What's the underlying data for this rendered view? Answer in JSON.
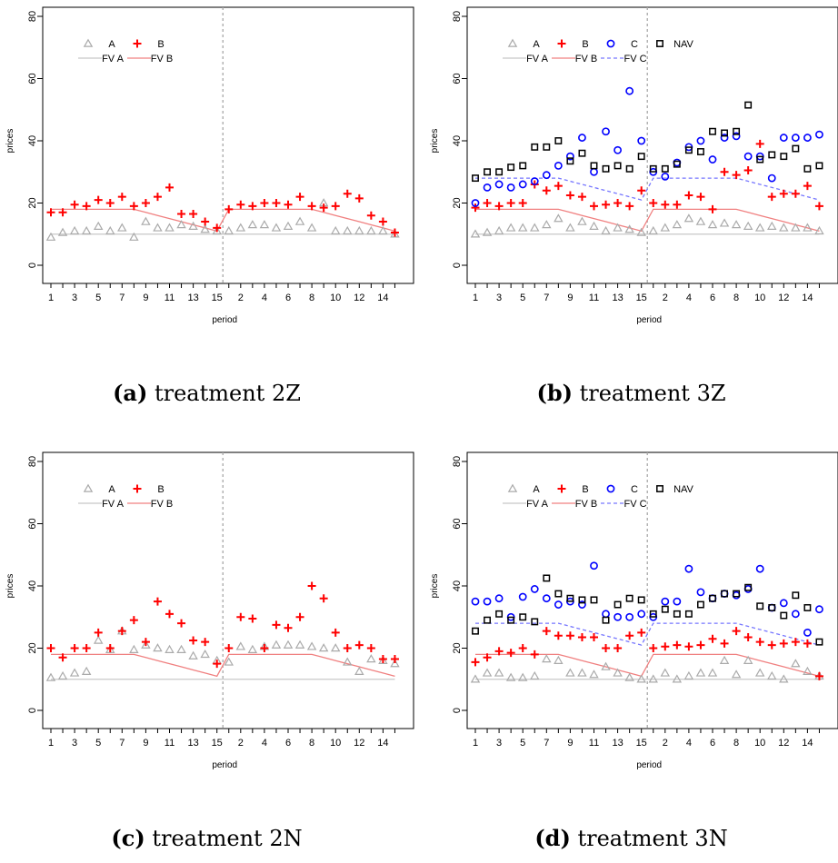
{
  "figure": {
    "captions": [
      {
        "label": "(a)",
        "text": "treatment 2Z"
      },
      {
        "label": "(b)",
        "text": "treatment 3Z"
      },
      {
        "label": "(c)",
        "text": "treatment 2N"
      },
      {
        "label": "(d)",
        "text": "treatment 3N"
      }
    ]
  },
  "chart_data": [
    {
      "type": "scatter",
      "xlabel": "period",
      "ylabel": "prices",
      "ylim": [
        0,
        80
      ],
      "yticks": [
        0,
        20,
        40,
        60,
        80
      ],
      "x_tick_labels": [
        "1",
        "3",
        "5",
        "7",
        "9",
        "11",
        "13",
        "15",
        "2",
        "4",
        "6",
        "8",
        "10",
        "12",
        "14"
      ],
      "session_divider": 15.5,
      "grid": false,
      "legend": {
        "position": "top-left",
        "entries": [
          "A",
          "B",
          "FV A",
          "FV B"
        ]
      },
      "colors": {
        "A": "#aaaaaa",
        "B": "#ff0000"
      },
      "series": [
        {
          "name": "A",
          "marker": "triangle",
          "color": "#aaaaaa",
          "values": [
            9,
            10.5,
            11,
            11,
            12.5,
            11,
            12,
            9,
            14,
            12,
            12,
            13,
            12.5,
            11.5,
            11,
            11,
            12,
            13,
            13,
            12,
            12.5,
            14,
            12,
            20,
            11,
            11,
            11,
            11,
            11,
            10
          ]
        },
        {
          "name": "B",
          "marker": "plus",
          "color": "#ff0000",
          "values": [
            17,
            17,
            19.5,
            19,
            21,
            20,
            22,
            19,
            20,
            22,
            25,
            16.5,
            16.5,
            14,
            12,
            18,
            19.5,
            19,
            20,
            20,
            19.5,
            22,
            19,
            18.5,
            19,
            23,
            21.5,
            16,
            14,
            10.5
          ]
        },
        {
          "name": "FV A",
          "line": "solid",
          "color": "#c8c8c8",
          "values": [
            10,
            10,
            10,
            10,
            10,
            10,
            10,
            10,
            10,
            10,
            10,
            10,
            10,
            10,
            10,
            10,
            10,
            10,
            10,
            10,
            10,
            10,
            10,
            10,
            10,
            10,
            10,
            10,
            10,
            10
          ]
        },
        {
          "name": "FV B",
          "line": "solid",
          "color": "#f08080",
          "values": [
            18,
            18,
            18,
            18,
            18,
            18,
            18,
            18,
            17,
            16,
            15,
            14,
            13,
            12,
            11,
            18,
            18,
            18,
            18,
            18,
            18,
            18,
            18,
            17,
            16,
            15,
            14,
            13,
            12,
            11
          ]
        }
      ]
    },
    {
      "type": "scatter",
      "xlabel": "period",
      "ylabel": "prices",
      "ylim": [
        0,
        80
      ],
      "yticks": [
        0,
        20,
        40,
        60,
        80
      ],
      "x_tick_labels": [
        "1",
        "3",
        "5",
        "7",
        "9",
        "11",
        "13",
        "15",
        "2",
        "4",
        "6",
        "8",
        "10",
        "12",
        "14"
      ],
      "session_divider": 15.5,
      "grid": false,
      "legend": {
        "position": "top-left",
        "entries": [
          "A",
          "B",
          "C",
          "NAV",
          "FV A",
          "FV B",
          "FV C"
        ]
      },
      "colors": {
        "A": "#aaaaaa",
        "B": "#ff0000",
        "C": "#0000ff",
        "NAV": "#000000"
      },
      "series": [
        {
          "name": "A",
          "marker": "triangle",
          "color": "#aaaaaa",
          "values": [
            10,
            10.5,
            11,
            12,
            12,
            12,
            13,
            15,
            12,
            14,
            12.5,
            11,
            12,
            11.5,
            10.5,
            11,
            12,
            13,
            15,
            14,
            13,
            13.5,
            13,
            12.5,
            12,
            12.5,
            12,
            12,
            12,
            11
          ]
        },
        {
          "name": "B",
          "marker": "plus",
          "color": "#ff0000",
          "values": [
            18.5,
            20,
            19,
            20,
            20,
            26,
            24,
            25.5,
            22.5,
            22,
            19,
            19.5,
            20,
            19,
            24,
            20,
            19.5,
            19.5,
            22.5,
            22,
            18,
            30,
            29,
            30.5,
            39,
            22,
            23,
            23,
            25.5,
            19
          ]
        },
        {
          "name": "C",
          "marker": "circle",
          "color": "#0000ff",
          "values": [
            20,
            25,
            26,
            25,
            26,
            27,
            29,
            32,
            35,
            41,
            30,
            43,
            37,
            56,
            40,
            30,
            28.5,
            33,
            38,
            40,
            34,
            41,
            41.5,
            35,
            35,
            28,
            41,
            41,
            41,
            42
          ]
        },
        {
          "name": "NAV",
          "marker": "square",
          "color": "#000000",
          "values": [
            28,
            30,
            30,
            31.5,
            32,
            38,
            38,
            40,
            33.5,
            36,
            32,
            31,
            32,
            31,
            35,
            31,
            31,
            32.5,
            37,
            36.5,
            43,
            42.5,
            43,
            51.5,
            34,
            35.5,
            35,
            37.5,
            31,
            32
          ]
        },
        {
          "name": "FV A",
          "line": "solid",
          "color": "#c8c8c8",
          "values": [
            10,
            10,
            10,
            10,
            10,
            10,
            10,
            10,
            10,
            10,
            10,
            10,
            10,
            10,
            10,
            10,
            10,
            10,
            10,
            10,
            10,
            10,
            10,
            10,
            10,
            10,
            10,
            10,
            10,
            10
          ]
        },
        {
          "name": "FV B",
          "line": "solid",
          "color": "#f08080",
          "values": [
            18,
            18,
            18,
            18,
            18,
            18,
            18,
            18,
            17,
            16,
            15,
            14,
            13,
            12,
            11,
            18,
            18,
            18,
            18,
            18,
            18,
            18,
            18,
            17,
            16,
            15,
            14,
            13,
            12,
            11
          ]
        },
        {
          "name": "FV C",
          "line": "dashed",
          "color": "#7777ff",
          "values": [
            28,
            28,
            28,
            28,
            28,
            28,
            28,
            28,
            27,
            26,
            25,
            24,
            23,
            22,
            21,
            28,
            28,
            28,
            28,
            28,
            28,
            28,
            28,
            27,
            26,
            25,
            24,
            23,
            22,
            21
          ]
        }
      ]
    },
    {
      "type": "scatter",
      "xlabel": "period",
      "ylabel": "prices",
      "ylim": [
        0,
        80
      ],
      "yticks": [
        0,
        20,
        40,
        60,
        80
      ],
      "x_tick_labels": [
        "1",
        "3",
        "5",
        "7",
        "9",
        "11",
        "13",
        "15",
        "2",
        "4",
        "6",
        "8",
        "10",
        "12",
        "14"
      ],
      "session_divider": 15.5,
      "grid": false,
      "legend": {
        "position": "top-left",
        "entries": [
          "A",
          "B",
          "FV A",
          "FV B"
        ]
      },
      "colors": {
        "A": "#aaaaaa",
        "B": "#ff0000"
      },
      "series": [
        {
          "name": "A",
          "marker": "triangle",
          "color": "#aaaaaa",
          "values": [
            10.5,
            11,
            12,
            12.5,
            22.5,
            19.5,
            25.5,
            19.5,
            21,
            20,
            19.5,
            19.5,
            17.5,
            18,
            16,
            15.5,
            20.5,
            19.5,
            20.5,
            21,
            21,
            21,
            20.5,
            20,
            20,
            15.5,
            12.5,
            16.5,
            16,
            15
          ]
        },
        {
          "name": "B",
          "marker": "plus",
          "color": "#ff0000",
          "values": [
            20,
            17,
            20,
            20,
            25,
            20,
            25.5,
            29,
            22,
            35,
            31,
            28,
            22.5,
            22,
            15,
            20,
            30,
            29.5,
            20,
            27.5,
            26.5,
            30,
            40,
            36,
            25,
            20,
            21,
            20,
            16.5,
            16.5
          ]
        },
        {
          "name": "FV A",
          "line": "solid",
          "color": "#c8c8c8",
          "values": [
            10,
            10,
            10,
            10,
            10,
            10,
            10,
            10,
            10,
            10,
            10,
            10,
            10,
            10,
            10,
            10,
            10,
            10,
            10,
            10,
            10,
            10,
            10,
            10,
            10,
            10,
            10,
            10,
            10,
            10
          ]
        },
        {
          "name": "FV B",
          "line": "solid",
          "color": "#f08080",
          "values": [
            18,
            18,
            18,
            18,
            18,
            18,
            18,
            18,
            17,
            16,
            15,
            14,
            13,
            12,
            11,
            18,
            18,
            18,
            18,
            18,
            18,
            18,
            18,
            17,
            16,
            15,
            14,
            13,
            12,
            11
          ]
        }
      ]
    },
    {
      "type": "scatter",
      "xlabel": "period",
      "ylabel": "prices",
      "ylim": [
        0,
        80
      ],
      "yticks": [
        0,
        20,
        40,
        60,
        80
      ],
      "x_tick_labels": [
        "1",
        "3",
        "5",
        "7",
        "9",
        "11",
        "13",
        "15",
        "2",
        "4",
        "6",
        "8",
        "10",
        "12",
        "14"
      ],
      "session_divider": 15.5,
      "grid": false,
      "legend": {
        "position": "top-left",
        "entries": [
          "A",
          "B",
          "C",
          "NAV",
          "FV A",
          "FV B",
          "FV C"
        ]
      },
      "colors": {
        "A": "#aaaaaa",
        "B": "#ff0000",
        "C": "#0000ff",
        "NAV": "#000000"
      },
      "series": [
        {
          "name": "A",
          "marker": "triangle",
          "color": "#aaaaaa",
          "values": [
            10,
            12,
            12,
            10.5,
            10.5,
            11,
            16.5,
            16,
            12,
            12,
            11.5,
            14,
            12,
            10.5,
            10,
            10,
            12,
            10,
            11,
            12,
            12,
            16,
            11.5,
            16,
            12,
            11,
            10,
            15,
            12.5,
            11
          ]
        },
        {
          "name": "B",
          "marker": "plus",
          "color": "#ff0000",
          "values": [
            15.5,
            17,
            19,
            18.5,
            20,
            18,
            25.5,
            24,
            24,
            23.5,
            23.5,
            20,
            20,
            24,
            25,
            20,
            20.5,
            21,
            20.5,
            21,
            23,
            21.5,
            25.5,
            23.5,
            22,
            21,
            21.5,
            22,
            21.5,
            11
          ]
        },
        {
          "name": "C",
          "marker": "circle",
          "color": "#0000ff",
          "values": [
            35,
            35,
            36,
            30,
            36.5,
            39,
            36,
            34,
            35,
            34,
            46.5,
            31,
            30,
            30,
            31,
            30,
            35,
            35,
            45.5,
            38,
            36,
            37.5,
            37,
            39,
            45.5,
            33,
            34.5,
            31,
            25,
            32.5
          ]
        },
        {
          "name": "NAV",
          "marker": "square",
          "color": "#000000",
          "values": [
            25.5,
            29,
            31,
            29,
            30,
            28.5,
            42.5,
            37.5,
            36,
            35.5,
            35.5,
            29,
            34,
            36,
            35.5,
            31,
            32.5,
            31,
            31,
            34,
            36,
            37.5,
            37.5,
            39.5,
            33.5,
            33,
            30.5,
            37,
            33,
            22
          ]
        },
        {
          "name": "FV A",
          "line": "solid",
          "color": "#c8c8c8",
          "values": [
            10,
            10,
            10,
            10,
            10,
            10,
            10,
            10,
            10,
            10,
            10,
            10,
            10,
            10,
            10,
            10,
            10,
            10,
            10,
            10,
            10,
            10,
            10,
            10,
            10,
            10,
            10,
            10,
            10,
            10
          ]
        },
        {
          "name": "FV B",
          "line": "solid",
          "color": "#f08080",
          "values": [
            18,
            18,
            18,
            18,
            18,
            18,
            18,
            18,
            17,
            16,
            15,
            14,
            13,
            12,
            11,
            18,
            18,
            18,
            18,
            18,
            18,
            18,
            18,
            17,
            16,
            15,
            14,
            13,
            12,
            11
          ]
        },
        {
          "name": "FV C",
          "line": "dashed",
          "color": "#7777ff",
          "values": [
            28,
            28,
            28,
            28,
            28,
            28,
            28,
            28,
            27,
            26,
            25,
            24,
            23,
            22,
            21,
            28,
            28,
            28,
            28,
            28,
            28,
            28,
            28,
            27,
            26,
            25,
            24,
            23,
            22,
            21
          ]
        }
      ]
    }
  ]
}
